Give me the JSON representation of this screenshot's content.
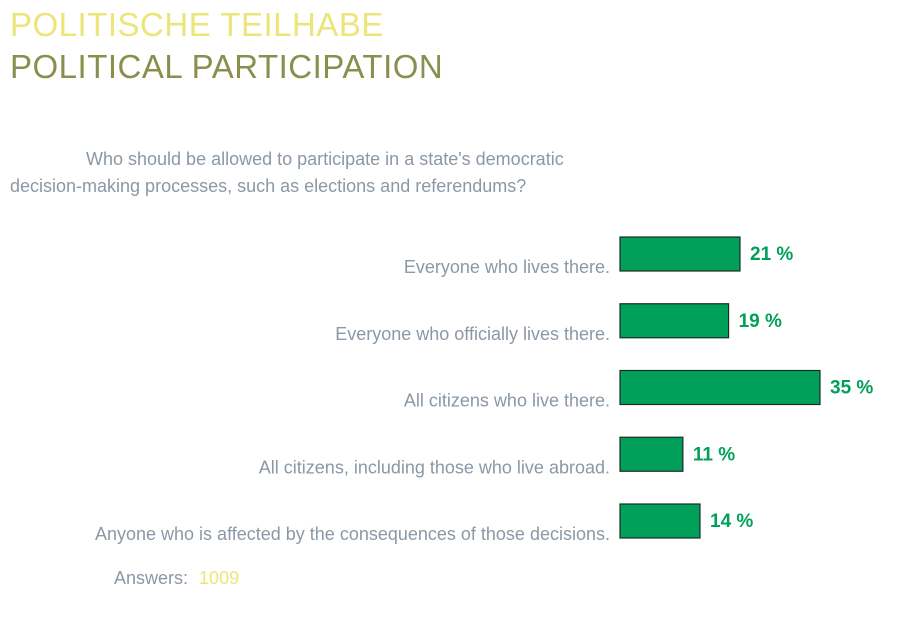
{
  "header": {
    "title_de": "POLITISCHE TEILHABE",
    "title_en": "POLITICAL PARTICIPATION"
  },
  "question": "Who should be allowed to participate in a state's democratic decision-making processes, such as elections and referendums?",
  "footer": {
    "answers_label": "Answers:",
    "answers_count": "1009"
  },
  "colors": {
    "bar_fill": "#00a05a",
    "bar_stroke": "#1d2b22",
    "title_de": "#ece57a",
    "title_en": "#8a8f4e",
    "text": "#8b98a6"
  },
  "chart_data": {
    "type": "bar",
    "orientation": "horizontal",
    "categories": [
      "Everyone who lives there.",
      "Everyone who officially lives there.",
      "All citizens who live there.",
      "All citizens, including those who live abroad.",
      "Anyone who is affected by the consequences of those decisions."
    ],
    "values": [
      21,
      19,
      35,
      11,
      14
    ],
    "value_labels": [
      "21 %",
      "19 %",
      "35 %",
      "11 %",
      "14 %"
    ],
    "unit": "%",
    "xlim": [
      0,
      35
    ],
    "grid": false,
    "legend": "none"
  }
}
